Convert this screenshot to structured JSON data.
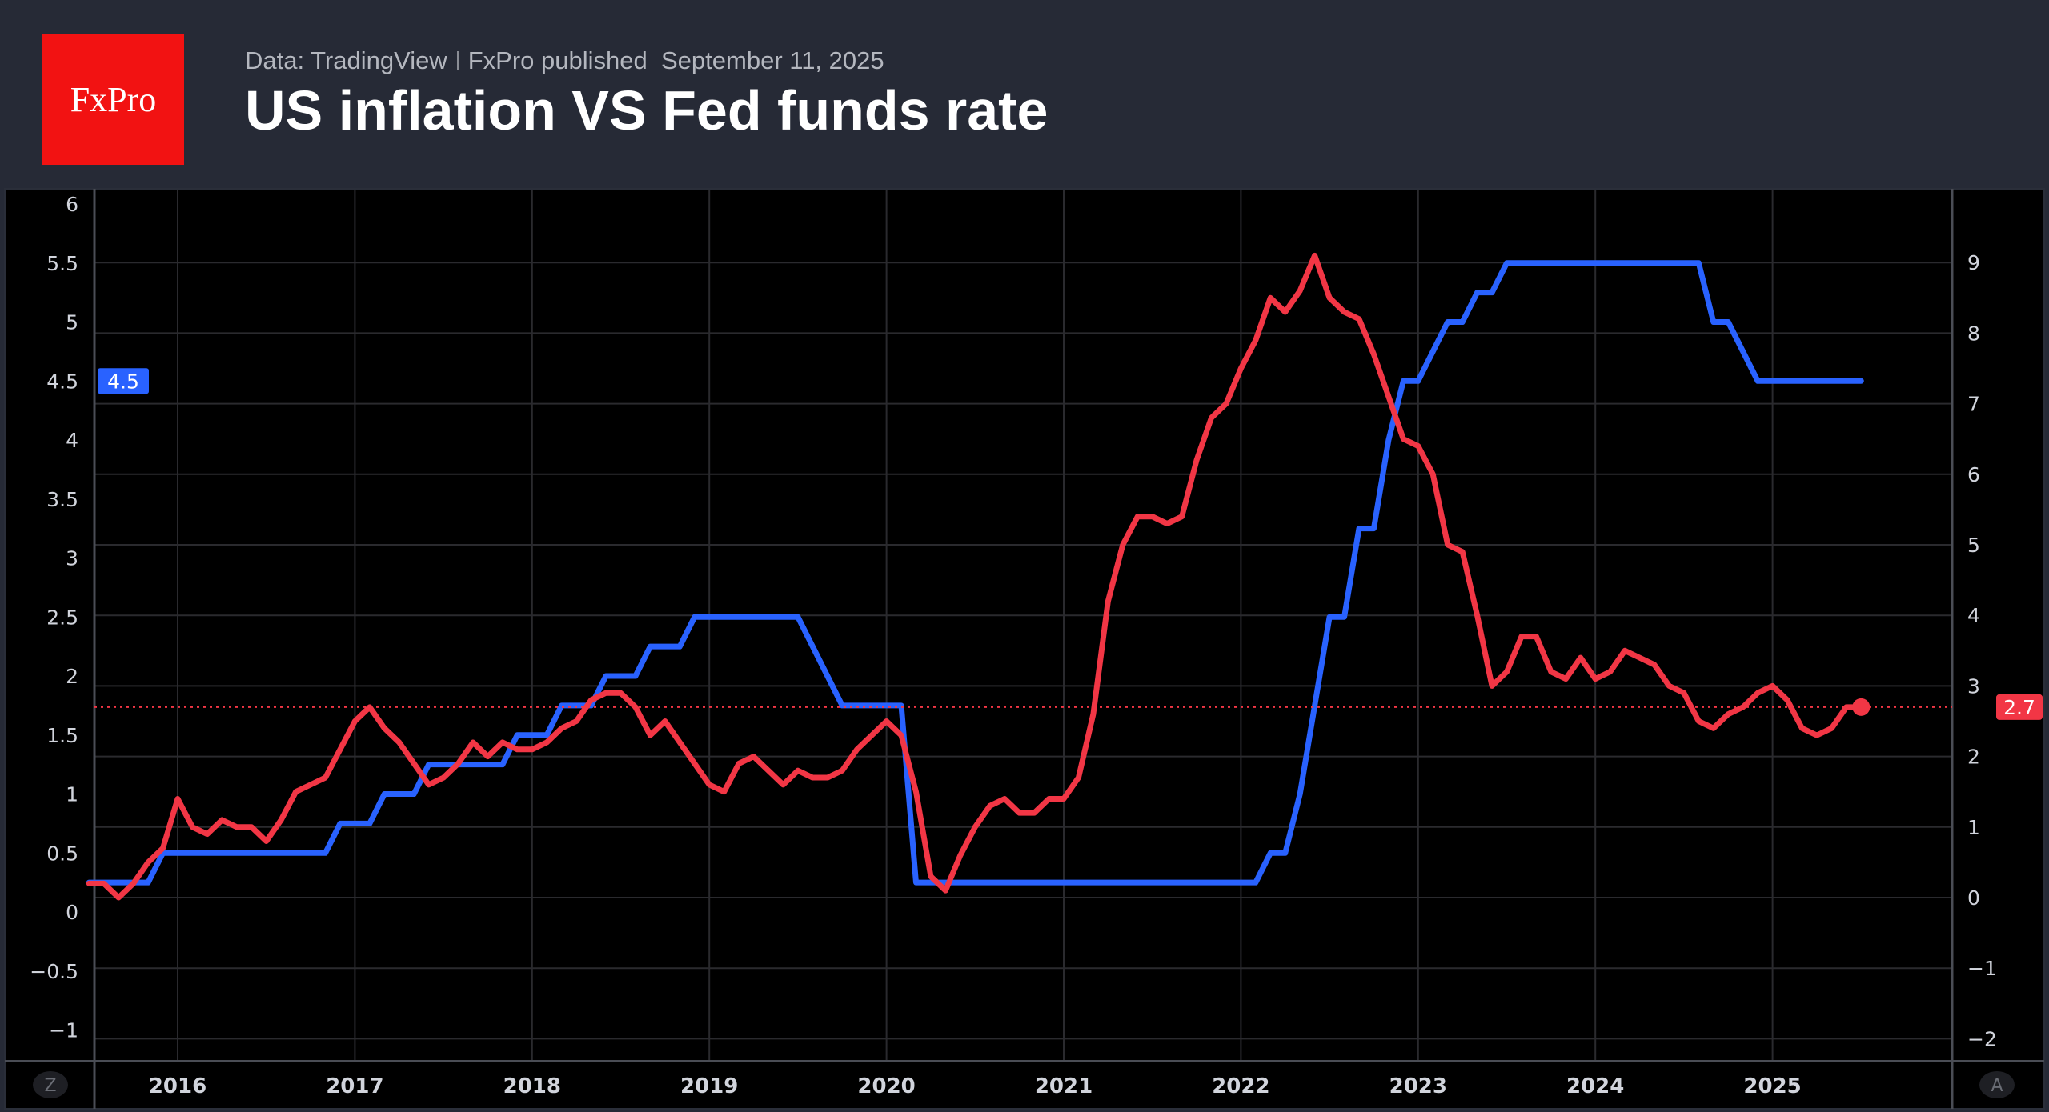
{
  "header": {
    "logo_text": "FxPro",
    "source": "Data: TradingView",
    "publisher": "FxPro published",
    "date": "September 11, 2025",
    "title": "US inflation VS Fed funds rate"
  },
  "controls": {
    "left_button": "Z",
    "right_button": "A"
  },
  "colors": {
    "fed": "#2962ff",
    "cpi": "#f23645",
    "background": "#000000",
    "header": "#262a36"
  },
  "chart_data": {
    "type": "line",
    "title": "US inflation VS Fed funds rate",
    "x_ticks": [
      "2016",
      "2017",
      "2018",
      "2019",
      "2020",
      "2021",
      "2022",
      "2023",
      "2024",
      "2025"
    ],
    "left_axis": {
      "ylim": [
        -1.2,
        6.1
      ],
      "ticks": [
        "6",
        "5.5",
        "5",
        "4.5",
        "4",
        "3.5",
        "3",
        "2.5",
        "2",
        "1.5",
        "1",
        "0.5",
        "0",
        "−0.5",
        "−1"
      ]
    },
    "right_axis": {
      "ylim": [
        -2.3,
        10.2
      ],
      "ticks": [
        "9",
        "8",
        "7",
        "6",
        "5",
        "4",
        "3",
        "2",
        "1",
        "0",
        "−1",
        "−2"
      ]
    },
    "grid": true,
    "start_month": "2015-07",
    "series": [
      {
        "key": "fed",
        "axis": "left",
        "last_label": "4.5",
        "values": [
          0.25,
          0.25,
          0.25,
          0.25,
          0.25,
          0.5,
          0.5,
          0.5,
          0.5,
          0.5,
          0.5,
          0.5,
          0.5,
          0.5,
          0.5,
          0.5,
          0.5,
          0.75,
          0.75,
          0.75,
          1,
          1,
          1,
          1.25,
          1.25,
          1.25,
          1.25,
          1.25,
          1.25,
          1.5,
          1.5,
          1.5,
          1.75,
          1.75,
          1.75,
          2,
          2,
          2,
          2.25,
          2.25,
          2.25,
          2.5,
          2.5,
          2.5,
          2.5,
          2.5,
          2.5,
          2.5,
          2.5,
          2.25,
          2,
          1.75,
          1.75,
          1.75,
          1.75,
          1.75,
          0.25,
          0.25,
          0.25,
          0.25,
          0.25,
          0.25,
          0.25,
          0.25,
          0.25,
          0.25,
          0.25,
          0.25,
          0.25,
          0.25,
          0.25,
          0.25,
          0.25,
          0.25,
          0.25,
          0.25,
          0.25,
          0.25,
          0.25,
          0.25,
          0.5,
          0.5,
          1,
          1.75,
          2.5,
          2.5,
          3.25,
          3.25,
          4,
          4.5,
          4.5,
          4.75,
          5,
          5,
          5.25,
          5.25,
          5.5,
          5.5,
          5.5,
          5.5,
          5.5,
          5.5,
          5.5,
          5.5,
          5.5,
          5.5,
          5.5,
          5.5,
          5.5,
          5.5,
          5,
          5,
          4.75,
          4.5,
          4.5,
          4.5,
          4.5,
          4.5,
          4.5,
          4.5,
          4.5
        ]
      },
      {
        "key": "cpi",
        "axis": "right",
        "last_label": "2.7",
        "values": [
          0.2,
          0.2,
          0.0,
          0.2,
          0.5,
          0.7,
          1.4,
          1.0,
          0.9,
          1.1,
          1.0,
          1.0,
          0.8,
          1.1,
          1.5,
          1.6,
          1.7,
          2.1,
          2.5,
          2.7,
          2.4,
          2.2,
          1.9,
          1.6,
          1.7,
          1.9,
          2.2,
          2.0,
          2.2,
          2.1,
          2.1,
          2.2,
          2.4,
          2.5,
          2.8,
          2.9,
          2.9,
          2.7,
          2.3,
          2.5,
          2.2,
          1.9,
          1.6,
          1.5,
          1.9,
          2.0,
          1.8,
          1.6,
          1.8,
          1.7,
          1.7,
          1.8,
          2.1,
          2.3,
          2.5,
          2.3,
          1.5,
          0.3,
          0.1,
          0.6,
          1.0,
          1.3,
          1.4,
          1.2,
          1.2,
          1.4,
          1.4,
          1.7,
          2.6,
          4.2,
          5.0,
          5.4,
          5.4,
          5.3,
          5.4,
          6.2,
          6.8,
          7.0,
          7.5,
          7.9,
          8.5,
          8.3,
          8.6,
          9.1,
          8.5,
          8.3,
          8.2,
          7.7,
          7.1,
          6.5,
          6.4,
          6.0,
          5.0,
          4.9,
          4.0,
          3.0,
          3.2,
          3.7,
          3.7,
          3.2,
          3.1,
          3.4,
          3.1,
          3.2,
          3.5,
          3.4,
          3.3,
          3.0,
          2.9,
          2.5,
          2.4,
          2.6,
          2.7,
          2.9,
          3.0,
          2.8,
          2.4,
          2.3,
          2.4,
          2.7,
          2.7
        ]
      }
    ]
  }
}
